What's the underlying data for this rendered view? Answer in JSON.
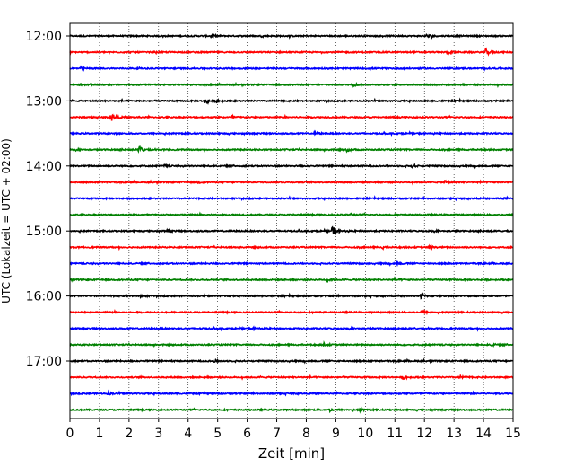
{
  "chart_data": {
    "type": "line",
    "title": "",
    "xlabel": "Zeit  [min]",
    "ylabel": "UTC (Lokalzeit = UTC + 02:00)",
    "xlim": [
      0,
      15
    ],
    "x_ticks": [
      "0",
      "1",
      "2",
      "3",
      "4",
      "5",
      "6",
      "7",
      "8",
      "9",
      "10",
      "11",
      "12",
      "13",
      "14",
      "15"
    ],
    "y_tick_labels": [
      "12:00",
      "13:00",
      "14:00",
      "15:00",
      "16:00",
      "17:00"
    ],
    "grid": "vertical dotted lines at each minute",
    "color_cycle": [
      "#000000",
      "#ff0000",
      "#0000ff",
      "#008000"
    ],
    "traces": [
      {
        "start": "12:00",
        "color": "#000000",
        "events": [
          {
            "minute": 4.8,
            "amp": 0.2
          },
          {
            "minute": 12.1,
            "amp": 0.25
          }
        ]
      },
      {
        "start": "12:15",
        "color": "#ff0000",
        "events": [
          {
            "minute": 14.1,
            "amp": 0.45
          },
          {
            "minute": 12.8,
            "amp": 0.2
          }
        ]
      },
      {
        "start": "12:30",
        "color": "#0000ff",
        "events": [
          {
            "minute": 0.4,
            "amp": 0.15
          }
        ]
      },
      {
        "start": "12:45",
        "color": "#008000",
        "events": [
          {
            "minute": 9.6,
            "amp": 0.2
          }
        ]
      },
      {
        "start": "13:00",
        "color": "#000000",
        "events": [
          {
            "minute": 4.6,
            "amp": 0.45
          },
          {
            "minute": 5.0,
            "amp": 0.25
          }
        ]
      },
      {
        "start": "13:15",
        "color": "#ff0000",
        "events": [
          {
            "minute": 1.4,
            "amp": 0.6
          },
          {
            "minute": 5.5,
            "amp": 0.15
          }
        ]
      },
      {
        "start": "13:30",
        "color": "#0000ff",
        "events": [
          {
            "minute": 8.3,
            "amp": 0.12
          }
        ]
      },
      {
        "start": "13:45",
        "color": "#008000",
        "events": [
          {
            "minute": 2.35,
            "amp": 0.55
          },
          {
            "minute": 9.4,
            "amp": 0.2
          }
        ]
      },
      {
        "start": "14:00",
        "color": "#000000",
        "events": [
          {
            "minute": 3.2,
            "amp": 0.15
          },
          {
            "minute": 11.6,
            "amp": 0.2
          }
        ]
      },
      {
        "start": "14:15",
        "color": "#ff0000",
        "events": [
          {
            "minute": 12.7,
            "amp": 0.25
          },
          {
            "minute": 4.3,
            "amp": 0.15
          }
        ]
      },
      {
        "start": "14:30",
        "color": "#0000ff",
        "events": [
          {
            "minute": 14.6,
            "amp": 0.12
          }
        ]
      },
      {
        "start": "14:45",
        "color": "#008000",
        "events": [
          {
            "minute": 9.5,
            "amp": 0.2
          }
        ]
      },
      {
        "start": "15:00",
        "color": "#000000",
        "events": [
          {
            "minute": 8.9,
            "amp": 0.7
          },
          {
            "minute": 3.3,
            "amp": 0.15
          }
        ]
      },
      {
        "start": "15:15",
        "color": "#ff0000",
        "events": [
          {
            "minute": 10.6,
            "amp": 0.15
          },
          {
            "minute": 12.2,
            "amp": 0.15
          }
        ]
      },
      {
        "start": "15:30",
        "color": "#0000ff",
        "events": [
          {
            "minute": 11.1,
            "amp": 0.12
          }
        ]
      },
      {
        "start": "15:45",
        "color": "#008000",
        "events": [
          {
            "minute": 8.7,
            "amp": 0.25
          },
          {
            "minute": 11.0,
            "amp": 0.15
          }
        ]
      },
      {
        "start": "16:00",
        "color": "#000000",
        "events": [
          {
            "minute": 11.9,
            "amp": 0.35
          },
          {
            "minute": 2.4,
            "amp": 0.12
          }
        ]
      },
      {
        "start": "16:15",
        "color": "#ff0000",
        "events": [
          {
            "minute": 11.9,
            "amp": 0.25
          }
        ]
      },
      {
        "start": "16:30",
        "color": "#0000ff",
        "events": [
          {
            "minute": 6.2,
            "amp": 0.12
          }
        ]
      },
      {
        "start": "16:45",
        "color": "#008000",
        "events": [
          {
            "minute": 8.6,
            "amp": 0.2
          },
          {
            "minute": 14.3,
            "amp": 0.12
          }
        ]
      },
      {
        "start": "17:00",
        "color": "#000000",
        "events": [
          {
            "minute": 4.9,
            "amp": 0.15
          }
        ]
      },
      {
        "start": "17:15",
        "color": "#ff0000",
        "events": [
          {
            "minute": 11.3,
            "amp": 0.25
          },
          {
            "minute": 13.2,
            "amp": 0.15
          }
        ]
      },
      {
        "start": "17:30",
        "color": "#0000ff",
        "events": [
          {
            "minute": 1.3,
            "amp": 0.15
          }
        ]
      },
      {
        "start": "17:45",
        "color": "#008000",
        "events": [
          {
            "minute": 8.8,
            "amp": 0.2
          },
          {
            "minute": 9.8,
            "amp": 0.2
          }
        ]
      }
    ]
  }
}
